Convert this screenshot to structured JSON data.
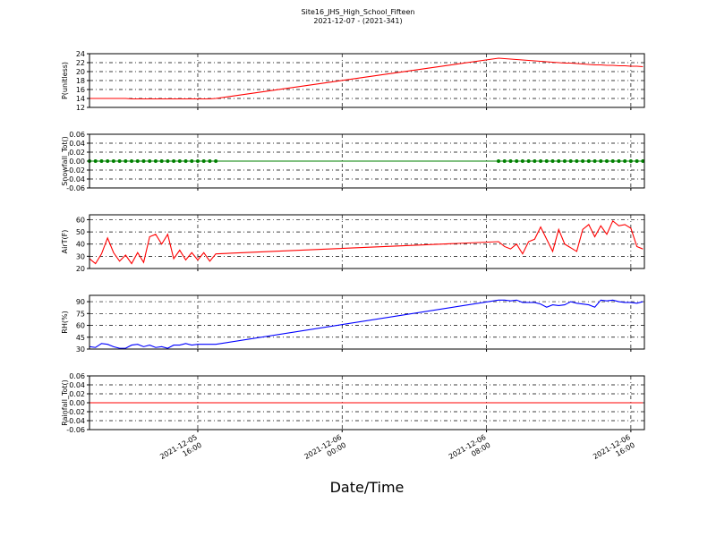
{
  "title": "Site16_JHS_High_School_Fifteen",
  "subtitle": "2021-12-07 - (2021-341)",
  "xlabel": "Date/Time",
  "xlim": [
    "2021-12-05 10:00",
    "2021-12-06 16:45"
  ],
  "xticks": [
    "2021-12-05 16:00",
    "2021-12-06 00:00",
    "2021-12-06 08:00",
    "2021-12-06 16:00"
  ],
  "grid": true,
  "x": [
    "2021-12-05 10:00",
    "2021-12-05 10:20",
    "2021-12-05 10:40",
    "2021-12-05 11:00",
    "2021-12-05 11:20",
    "2021-12-05 11:40",
    "2021-12-05 12:00",
    "2021-12-05 12:20",
    "2021-12-05 12:40",
    "2021-12-05 13:00",
    "2021-12-05 13:20",
    "2021-12-05 13:40",
    "2021-12-05 14:00",
    "2021-12-05 14:20",
    "2021-12-05 14:40",
    "2021-12-05 15:00",
    "2021-12-05 15:20",
    "2021-12-05 15:40",
    "2021-12-05 16:00",
    "2021-12-05 16:20",
    "2021-12-05 16:40",
    "2021-12-05 17:00",
    "2021-12-06 08:40",
    "2021-12-06 09:00",
    "2021-12-06 09:20",
    "2021-12-06 09:40",
    "2021-12-06 10:00",
    "2021-12-06 10:20",
    "2021-12-06 10:40",
    "2021-12-06 11:00",
    "2021-12-06 11:20",
    "2021-12-06 11:40",
    "2021-12-06 12:00",
    "2021-12-06 12:20",
    "2021-12-06 12:40",
    "2021-12-06 13:00",
    "2021-12-06 13:20",
    "2021-12-06 13:40",
    "2021-12-06 14:00",
    "2021-12-06 14:20",
    "2021-12-06 14:40",
    "2021-12-06 15:00",
    "2021-12-06 15:20",
    "2021-12-06 15:40",
    "2021-12-06 16:00",
    "2021-12-06 16:20",
    "2021-12-06 16:40"
  ],
  "chart_data": [
    {
      "type": "line",
      "ylabel": "P(unitless)",
      "ylim": [
        12,
        24
      ],
      "yticks": [
        12,
        14,
        16,
        18,
        20,
        22,
        24
      ],
      "series": [
        {
          "color": "#ff0000",
          "marker": false,
          "values": [
            14,
            14,
            14,
            14,
            14,
            14,
            14,
            13.9,
            13.9,
            13.9,
            13.9,
            13.9,
            13.9,
            13.9,
            13.9,
            13.9,
            13.9,
            13.9,
            13.9,
            13.9,
            13.9,
            14,
            23,
            22.9,
            22.8,
            22.7,
            22.6,
            22.5,
            22.4,
            22.3,
            22.2,
            22.1,
            22,
            21.9,
            21.9,
            21.8,
            21.7,
            21.6,
            21.5,
            21.5,
            21.4,
            21.4,
            21.3,
            21.3,
            21.2,
            21.2,
            21.1
          ]
        }
      ]
    },
    {
      "type": "line",
      "ylabel": "Snowfall_Tot()",
      "ylim": [
        -0.06,
        0.06
      ],
      "yticks": [
        -0.06,
        -0.04,
        -0.02,
        {
          "value": 0,
          "label": "0.00"
        },
        0.02,
        0.04,
        0.06
      ],
      "series": [
        {
          "color": "#008000",
          "marker": true,
          "values": [
            0,
            0,
            0,
            0,
            0,
            0,
            0,
            0,
            0,
            0,
            0,
            0,
            0,
            0,
            0,
            0,
            0,
            0,
            0,
            0,
            0,
            0,
            0,
            0,
            0,
            0,
            0,
            0,
            0,
            0,
            0,
            0,
            0,
            0,
            0,
            0,
            0,
            0,
            0,
            0,
            0,
            0,
            0,
            0,
            0,
            0,
            0
          ]
        }
      ]
    },
    {
      "type": "line",
      "ylabel": "AirT(F)",
      "ylim": [
        20,
        64
      ],
      "yticks": [
        20,
        30,
        40,
        50,
        60
      ],
      "series": [
        {
          "color": "#ff0000",
          "marker": false,
          "values": [
            28,
            24,
            32,
            45,
            33,
            26,
            31,
            24,
            33,
            25,
            46,
            48,
            40,
            48,
            28,
            35,
            27,
            33,
            27,
            33,
            26,
            32,
            42,
            38,
            36,
            40,
            32,
            42,
            44,
            54,
            44,
            34,
            52,
            40,
            37,
            34,
            52,
            56,
            46,
            55,
            48,
            59,
            55,
            56,
            53,
            38,
            36
          ]
        }
      ]
    },
    {
      "type": "line",
      "ylabel": "RH(%)",
      "ylim": [
        30,
        98
      ],
      "yticks": [
        30,
        45,
        60,
        75,
        90
      ],
      "series": [
        {
          "color": "#0000ff",
          "marker": false,
          "values": [
            33,
            32,
            37,
            36,
            33,
            31,
            31,
            35,
            36,
            33,
            35,
            32,
            33,
            31,
            35,
            35,
            37,
            35,
            36,
            36,
            36,
            36,
            92,
            92,
            91,
            92,
            89,
            89,
            89,
            87,
            83,
            86,
            85,
            86,
            90,
            88,
            87,
            86,
            83,
            92,
            91,
            92,
            90,
            89,
            89,
            88,
            90
          ]
        }
      ]
    },
    {
      "type": "line",
      "ylabel": "Rainfall_Tot()",
      "ylim": [
        -0.06,
        0.06
      ],
      "yticks": [
        -0.06,
        -0.04,
        -0.02,
        {
          "value": 0,
          "label": "0.00"
        },
        0.02,
        0.04,
        0.06
      ],
      "series": [
        {
          "color": "#ff0000",
          "marker": false,
          "values": [
            0,
            0,
            0,
            0,
            0,
            0,
            0,
            0,
            0,
            0,
            0,
            0,
            0,
            0,
            0,
            0,
            0,
            0,
            0,
            0,
            0,
            0,
            0,
            0,
            0,
            0,
            0,
            0,
            0,
            0,
            0,
            0,
            0,
            0,
            0,
            0,
            0,
            0,
            0,
            0,
            0,
            0,
            0,
            0,
            0,
            0,
            0
          ]
        }
      ]
    }
  ]
}
